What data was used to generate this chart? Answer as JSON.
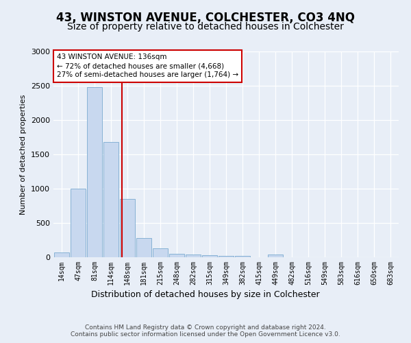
{
  "title": "43, WINSTON AVENUE, COLCHESTER, CO3 4NQ",
  "subtitle": "Size of property relative to detached houses in Colchester",
  "xlabel": "Distribution of detached houses by size in Colchester",
  "ylabel": "Number of detached properties",
  "categories": [
    "14sqm",
    "47sqm",
    "81sqm",
    "114sqm",
    "148sqm",
    "181sqm",
    "215sqm",
    "248sqm",
    "282sqm",
    "315sqm",
    "349sqm",
    "382sqm",
    "415sqm",
    "449sqm",
    "482sqm",
    "516sqm",
    "549sqm",
    "583sqm",
    "616sqm",
    "650sqm",
    "683sqm"
  ],
  "values": [
    75,
    1000,
    2480,
    1680,
    850,
    280,
    130,
    55,
    40,
    30,
    25,
    20,
    0,
    40,
    0,
    0,
    0,
    0,
    0,
    0,
    0
  ],
  "bar_color": "#c8d8ef",
  "bar_edgecolor": "#7aaad0",
  "vline_index": 3.65,
  "vline_color": "#cc0000",
  "annotation_text": "43 WINSTON AVENUE: 136sqm\n← 72% of detached houses are smaller (4,668)\n27% of semi-detached houses are larger (1,764) →",
  "annotation_box_edgecolor": "#cc0000",
  "ylim": [
    0,
    3000
  ],
  "yticks": [
    0,
    500,
    1000,
    1500,
    2000,
    2500,
    3000
  ],
  "footer_line1": "Contains HM Land Registry data © Crown copyright and database right 2024.",
  "footer_line2": "Contains public sector information licensed under the Open Government Licence v3.0.",
  "bg_color": "#e8eef7",
  "title_fontsize": 12,
  "subtitle_fontsize": 10,
  "ylabel_fontsize": 8,
  "xlabel_fontsize": 9,
  "tick_fontsize": 7,
  "annot_fontsize": 7.5,
  "footer_fontsize": 6.5
}
